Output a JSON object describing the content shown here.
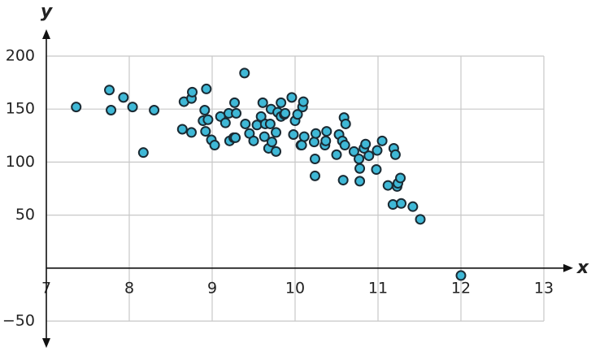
{
  "chart_data": {
    "type": "scatter",
    "x_label": "x",
    "y_label": "y",
    "xlim": [
      7,
      13
    ],
    "ylim": [
      -50,
      200
    ],
    "xticks": [
      7,
      8,
      9,
      10,
      11,
      12,
      13
    ],
    "yticks": [
      {
        "value": -50,
        "label": "−50"
      },
      0,
      50,
      100,
      150,
      200
    ],
    "grid": true,
    "color": "#3fb8d6",
    "series": [
      {
        "x": [
          7.36,
          7.76,
          7.78,
          7.93,
          8.04,
          8.17,
          8.3,
          8.64,
          8.66,
          8.75,
          8.76,
          8.75,
          8.89,
          8.91,
          8.93,
          8.92,
          8.95,
          8.99,
          9.03,
          9.1,
          9.16,
          9.2,
          9.21,
          9.26,
          9.27,
          9.29,
          9.28,
          9.39,
          9.4,
          9.45,
          9.5,
          9.54,
          9.59,
          9.61,
          9.63,
          9.64,
          9.68,
          9.7,
          9.71,
          9.72,
          9.77,
          9.77,
          9.79,
          9.83,
          9.83,
          9.87,
          9.88,
          9.96,
          9.98,
          10.0,
          10.03,
          10.07,
          10.08,
          10.09,
          10.1,
          10.11,
          10.23,
          10.24,
          10.24,
          10.25,
          10.36,
          10.38,
          10.37,
          10.5,
          10.53,
          10.57,
          10.59,
          10.61,
          10.6,
          10.58,
          10.71,
          10.77,
          10.78,
          10.78,
          10.83,
          10.85,
          10.89,
          10.98,
          10.99,
          11.05,
          11.12,
          11.18,
          11.19,
          11.21,
          11.23,
          11.24,
          11.27,
          11.28,
          11.42,
          11.51,
          12.0
        ],
        "values": [
          152,
          168,
          149,
          161,
          152,
          109,
          149,
          131,
          157,
          160,
          166,
          128,
          139,
          149,
          169,
          129,
          140,
          121,
          116,
          143,
          137,
          146,
          120,
          123,
          156,
          146,
          123,
          184,
          136,
          127,
          120,
          135,
          143,
          156,
          124,
          136,
          113,
          136,
          150,
          119,
          128,
          110,
          147,
          156,
          143,
          145,
          146,
          161,
          126,
          139,
          145,
          116,
          116,
          152,
          157,
          124,
          119,
          103,
          87,
          127,
          116,
          129,
          120,
          107,
          126,
          120,
          142,
          136,
          116,
          83,
          110,
          103,
          94,
          82,
          113,
          117,
          106,
          93,
          111,
          120,
          78,
          60,
          113,
          107,
          77,
          80,
          85,
          61,
          58,
          46,
          -7
        ]
      }
    ]
  }
}
